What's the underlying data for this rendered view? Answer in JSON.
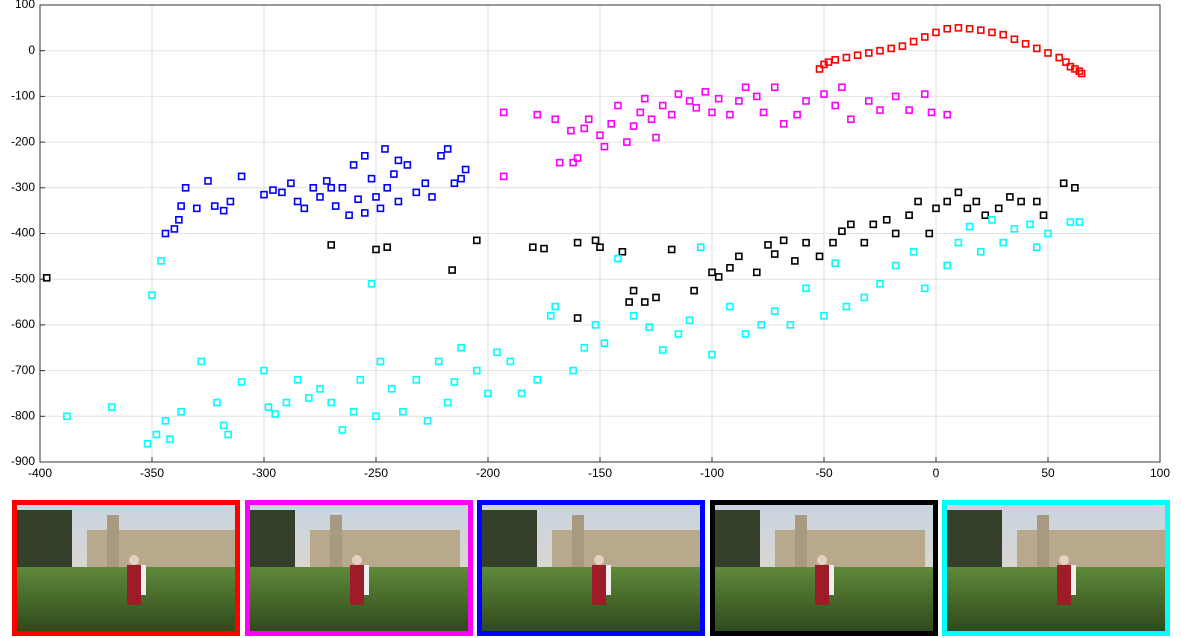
{
  "chart_data": {
    "type": "scatter",
    "xlim": [
      -400,
      100
    ],
    "ylim": [
      -900,
      100
    ],
    "xticks": [
      -400,
      -350,
      -300,
      -250,
      -200,
      -150,
      -100,
      -50,
      0,
      50,
      100
    ],
    "yticks": [
      -900,
      -800,
      -700,
      -600,
      -500,
      -400,
      -300,
      -200,
      -100,
      0,
      100
    ],
    "grid": true,
    "series": [
      {
        "color": "#ff0000",
        "x": [
          -52,
          -50,
          -48,
          -45,
          -40,
          -35,
          -30,
          -25,
          -20,
          -15,
          -10,
          -5,
          0,
          5,
          10,
          15,
          20,
          25,
          30,
          35,
          40,
          45,
          50,
          55,
          58,
          60,
          62,
          64,
          65
        ],
        "values": [
          -40,
          -30,
          -25,
          -20,
          -15,
          -10,
          -5,
          0,
          5,
          10,
          20,
          30,
          40,
          48,
          50,
          48,
          45,
          40,
          35,
          25,
          15,
          5,
          -5,
          -15,
          -25,
          -35,
          -40,
          -45,
          -50
        ]
      },
      {
        "color": "#ff00ff",
        "x": [
          -193,
          -193,
          -178,
          -170,
          -163,
          -162,
          -160,
          -168,
          -157,
          -155,
          -150,
          -148,
          -145,
          -142,
          -138,
          -135,
          -132,
          -130,
          -127,
          -125,
          -122,
          -118,
          -115,
          -110,
          -107,
          -103,
          -100,
          -97,
          -92,
          -88,
          -85,
          -80,
          -77,
          -72,
          -68,
          -62,
          -58,
          -50,
          -45,
          -42,
          -38,
          -30,
          -25,
          -18,
          -12,
          -5,
          -2,
          5
        ],
        "values": [
          -135,
          -275,
          -140,
          -150,
          -175,
          -245,
          -235,
          -245,
          -170,
          -150,
          -185,
          -210,
          -160,
          -120,
          -200,
          -165,
          -135,
          -105,
          -150,
          -190,
          -120,
          -140,
          -95,
          -110,
          -125,
          -90,
          -135,
          -105,
          -140,
          -110,
          -80,
          -100,
          -135,
          -80,
          -160,
          -140,
          -110,
          -95,
          -120,
          -80,
          -150,
          -110,
          -130,
          -100,
          -130,
          -95,
          -135,
          -140
        ]
      },
      {
        "color": "#0000ff",
        "x": [
          -344,
          -340,
          -338,
          -337,
          -335,
          -330,
          -325,
          -322,
          -318,
          -315,
          -310,
          -300,
          -296,
          -292,
          -288,
          -285,
          -282,
          -278,
          -275,
          -272,
          -268,
          -265,
          -262,
          -258,
          -255,
          -252,
          -250,
          -248,
          -245,
          -242,
          -240,
          -236,
          -232,
          -228,
          -225,
          -221,
          -218,
          -215,
          -212,
          -210,
          -246,
          -240,
          -260,
          -270,
          -255
        ],
        "values": [
          -400,
          -390,
          -370,
          -340,
          -300,
          -345,
          -285,
          -340,
          -350,
          -330,
          -275,
          -315,
          -305,
          -310,
          -290,
          -330,
          -345,
          -300,
          -320,
          -285,
          -340,
          -300,
          -360,
          -325,
          -230,
          -280,
          -320,
          -345,
          -300,
          -270,
          -330,
          -250,
          -310,
          -290,
          -320,
          -230,
          -215,
          -290,
          -280,
          -260,
          -215,
          -240,
          -250,
          -300,
          -355
        ]
      },
      {
        "color": "#000000",
        "x": [
          -397,
          -270,
          -250,
          -245,
          -216,
          -205,
          -180,
          -175,
          -160,
          -160,
          -152,
          -150,
          -140,
          -137,
          -135,
          -130,
          -125,
          -118,
          -108,
          -100,
          -97,
          -92,
          -88,
          -80,
          -75,
          -72,
          -68,
          -63,
          -58,
          -52,
          -46,
          -42,
          -38,
          -32,
          -28,
          -22,
          -18,
          -12,
          -8,
          -3,
          0,
          5,
          10,
          14,
          18,
          22,
          28,
          33,
          38,
          45,
          48,
          57,
          62
        ],
        "values": [
          -497,
          -425,
          -435,
          -430,
          -480,
          -415,
          -430,
          -433,
          -585,
          -420,
          -415,
          -430,
          -440,
          -550,
          -525,
          -550,
          -540,
          -435,
          -525,
          -485,
          -495,
          -475,
          -450,
          -485,
          -425,
          -445,
          -415,
          -460,
          -420,
          -450,
          -420,
          -395,
          -380,
          -420,
          -380,
          -370,
          -400,
          -360,
          -330,
          -400,
          -345,
          -330,
          -310,
          -345,
          -330,
          -360,
          -345,
          -320,
          -330,
          -330,
          -360,
          -290,
          -300
        ]
      },
      {
        "color": "#00ffff",
        "x": [
          -388,
          -368,
          -352,
          -350,
          -348,
          -346,
          -344,
          -342,
          -337,
          -328,
          -321,
          -318,
          -316,
          -310,
          -300,
          -298,
          -295,
          -290,
          -285,
          -280,
          -275,
          -270,
          -265,
          -260,
          -257,
          -252,
          -250,
          -248,
          -243,
          -238,
          -232,
          -227,
          -222,
          -218,
          -215,
          -212,
          -205,
          -200,
          -196,
          -190,
          -185,
          -178,
          -172,
          -170,
          -162,
          -157,
          -152,
          -148,
          -142,
          -135,
          -128,
          -122,
          -115,
          -110,
          -105,
          -100,
          -92,
          -85,
          -78,
          -72,
          -65,
          -58,
          -50,
          -45,
          -40,
          -32,
          -25,
          -18,
          -10,
          -5,
          5,
          10,
          15,
          20,
          25,
          30,
          35,
          42,
          45,
          50,
          60,
          64
        ],
        "values": [
          -800,
          -780,
          -860,
          -535,
          -840,
          -460,
          -810,
          -850,
          -790,
          -680,
          -770,
          -820,
          -840,
          -725,
          -700,
          -780,
          -795,
          -770,
          -720,
          -760,
          -740,
          -770,
          -830,
          -790,
          -720,
          -510,
          -800,
          -680,
          -740,
          -790,
          -720,
          -810,
          -680,
          -770,
          -725,
          -650,
          -700,
          -750,
          -660,
          -680,
          -750,
          -720,
          -580,
          -560,
          -700,
          -650,
          -600,
          -640,
          -455,
          -580,
          -605,
          -655,
          -620,
          -590,
          -430,
          -665,
          -560,
          -620,
          -600,
          -570,
          -600,
          -520,
          -580,
          -465,
          -560,
          -540,
          -510,
          -470,
          -440,
          -520,
          -470,
          -420,
          -385,
          -440,
          -370,
          -420,
          -390,
          -380,
          -430,
          -400,
          -375,
          -375
        ]
      }
    ]
  }
}
